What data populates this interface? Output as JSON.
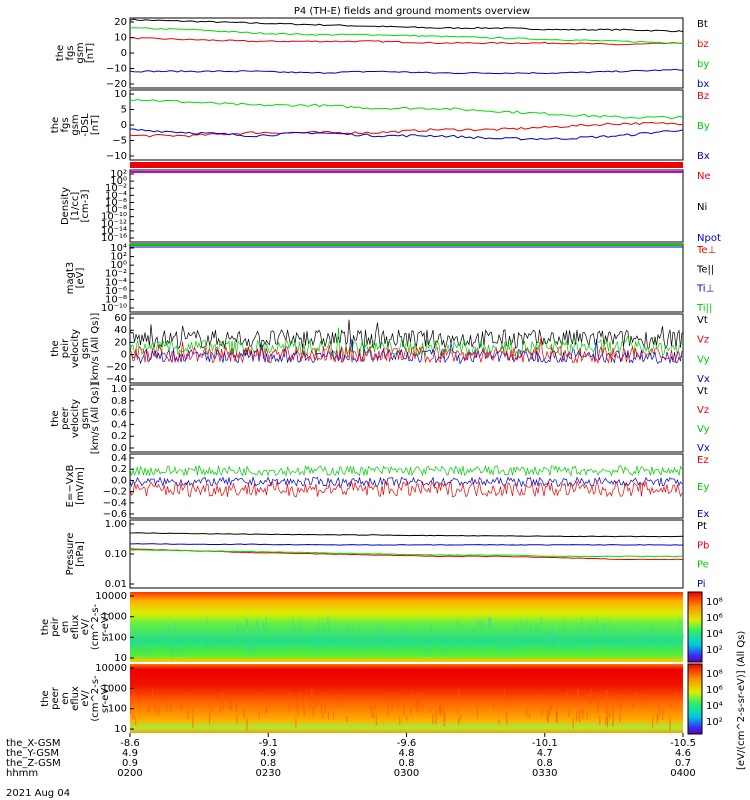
{
  "title": "P4 (TH-E) fields and ground moments overview",
  "date": "2021 Aug 04",
  "colors": {
    "black": "#000000",
    "red": "#ee0000",
    "green": "#00dd00",
    "blue": "#0000cc"
  },
  "chart_data": [
    {
      "type": "line",
      "id": "fgs_gsm",
      "ylabel": [
        "the",
        "fgs",
        "gsm",
        "[nT]"
      ],
      "yticks": [
        "20",
        "10",
        "0",
        "−10",
        "−20"
      ],
      "ylim": [
        -20,
        22
      ],
      "legend": [
        "Bt",
        "bz",
        "by",
        "bx"
      ],
      "series": [
        {
          "name": "Bt",
          "color": "#000000",
          "values": [
            21,
            20,
            19,
            18,
            17,
            16,
            16,
            15,
            15,
            14
          ]
        },
        {
          "name": "bz",
          "color": "#ee0000",
          "values": [
            10,
            9,
            8,
            8,
            8,
            7,
            7,
            7,
            6,
            7
          ]
        },
        {
          "name": "by",
          "color": "#00dd00",
          "values": [
            16,
            15,
            13,
            12,
            12,
            11,
            10,
            9,
            8,
            7
          ]
        },
        {
          "name": "bx",
          "color": "#0000cc",
          "values": [
            -10,
            -10,
            -10,
            -11,
            -10,
            -11,
            -11,
            -11,
            -10,
            -9
          ]
        }
      ]
    },
    {
      "type": "line",
      "id": "fgs_dsl",
      "ylabel": [
        "the",
        "fgs",
        "gsm",
        "-DSL",
        "[nT]"
      ],
      "yticks": [
        "10",
        "5",
        "0",
        "−5",
        "−10"
      ],
      "ylim": [
        -12,
        11
      ],
      "legend": [
        "Bz",
        "By",
        "Bx"
      ],
      "series": [
        {
          "name": "Bz",
          "color": "#ee0000",
          "values": [
            -4,
            -4,
            -3,
            -3,
            -3,
            -2,
            -2,
            -1,
            0,
            0
          ]
        },
        {
          "name": "By",
          "color": "#00dd00",
          "values": [
            8,
            7,
            6,
            6,
            5,
            5,
            4,
            3,
            2,
            2
          ]
        },
        {
          "name": "Bx",
          "color": "#0000cc",
          "values": [
            -2,
            -3,
            -4,
            -3,
            -4,
            -4,
            -5,
            -5,
            -4,
            -2
          ]
        }
      ]
    },
    {
      "type": "line",
      "id": "density",
      "ylabel": [
        "Density",
        "[1/cc]",
        "[cm-3]"
      ],
      "yticks": [
        "10²",
        "10⁰",
        "10⁻²",
        "10⁻⁴",
        "10⁻⁶",
        "10⁻⁸",
        "10⁻¹⁰",
        "10⁻¹²",
        "10⁻¹⁴",
        "10⁻¹⁶"
      ],
      "legend": [
        "Ne",
        "Ni",
        "Npot"
      ]
    },
    {
      "type": "line",
      "id": "temperature",
      "ylabel": [
        "magt3",
        "[eV]"
      ],
      "yticks": [
        "10⁴",
        "10²",
        "10⁰",
        "10⁻²",
        "10⁻⁴",
        "10⁻⁶",
        "10⁻⁸",
        "10⁻¹⁰"
      ],
      "legend": [
        "Te⊥",
        "Te||",
        "Ti⊥",
        "Ti||"
      ]
    },
    {
      "type": "line",
      "id": "peir_velocity",
      "ylabel": [
        "the",
        "peir",
        "velocity",
        "gsm",
        "[km/s (All Qs)]"
      ],
      "yticks": [
        "60",
        "40",
        "20",
        "0",
        "−20",
        "−40"
      ],
      "ylim": [
        -40,
        62
      ],
      "legend": [
        "Vt",
        "Vz",
        "Vy",
        "Vx"
      ]
    },
    {
      "type": "line",
      "id": "peer_velocity",
      "ylabel": [
        "the",
        "peer",
        "velocity",
        "gsm",
        "[km/s (All Qs)]"
      ],
      "yticks": [
        "1.0",
        "0.8",
        "0.6",
        "0.4",
        "0.2",
        "0.0"
      ],
      "ylim": [
        0,
        1
      ],
      "legend": [
        "Vt",
        "Vz",
        "Vy",
        "Vx"
      ]
    },
    {
      "type": "line",
      "id": "efield",
      "ylabel": [
        "E=−VxB",
        "[mV/m]"
      ],
      "yticks": [
        "0.4",
        "0.2",
        "0.0",
        "−0.2",
        "−0.4",
        "−0.6"
      ],
      "ylim": [
        -0.7,
        0.45
      ],
      "legend": [
        "Ez",
        "Ey",
        "Ex"
      ]
    },
    {
      "type": "line",
      "id": "pressure",
      "ylabel": [
        "Pressure",
        "[nPa]"
      ],
      "yticks": [
        "1.00",
        "0.10",
        "0.01"
      ],
      "log": true,
      "legend": [
        "Pt",
        "Pb",
        "Pe",
        "Pi"
      ],
      "series": [
        {
          "name": "Pt",
          "color": "#000000",
          "values": [
            0.55,
            0.52,
            0.5,
            0.48,
            0.47,
            0.45,
            0.44,
            0.43,
            0.42,
            0.42
          ]
        },
        {
          "name": "Pb",
          "color": "#ee0000",
          "values": [
            0.17,
            0.15,
            0.13,
            0.12,
            0.11,
            0.1,
            0.1,
            0.09,
            0.08,
            0.08
          ]
        },
        {
          "name": "Pe",
          "color": "#00dd00",
          "values": [
            0.16,
            0.15,
            0.14,
            0.13,
            0.12,
            0.11,
            0.11,
            0.1,
            0.1,
            0.1
          ]
        },
        {
          "name": "Pi",
          "color": "#0000cc",
          "values": [
            0.25,
            0.24,
            0.24,
            0.23,
            0.23,
            0.23,
            0.23,
            0.23,
            0.23,
            0.23
          ]
        }
      ]
    },
    {
      "type": "heatmap",
      "id": "peir_eflux",
      "ylabel": [
        "the",
        "peir",
        "en",
        "eflux",
        "eV/",
        "(cm^2-s-",
        "sr-eV)"
      ],
      "yticks": [
        "10000",
        "1000",
        "100",
        "10"
      ]
    },
    {
      "type": "heatmap",
      "id": "peer_eflux",
      "ylabel": [
        "the",
        "peer",
        "en",
        "eflux",
        "eV/",
        "(cm^2-s-",
        "sr-eV)"
      ],
      "yticks": [
        "10000",
        "1000",
        "100",
        "10"
      ]
    }
  ],
  "colorbar": {
    "ticks": [
      "10⁸",
      "10⁶",
      "10⁴",
      "10²",
      "10⁸",
      "10⁶",
      "10⁴",
      "10²"
    ],
    "label": "[eV/(cm^2-s-sr-eV)] (All Qs)"
  },
  "xaxis": {
    "ticks": [
      "0200",
      "0230",
      "0300",
      "0330",
      "0400"
    ],
    "rows": [
      {
        "label": "the_X-GSM",
        "values": [
          "-8.6",
          "-9.1",
          "-9.6",
          "-10.1",
          "-10.5"
        ]
      },
      {
        "label": "the_Y-GSM",
        "values": [
          "4.9",
          "4.9",
          "4.8",
          "4.7",
          "4.6"
        ]
      },
      {
        "label": "the_Z-GSM",
        "values": [
          "0.9",
          "0.8",
          "0.8",
          "0.8",
          "0.7"
        ]
      },
      {
        "label": "hhmm",
        "values": [
          "0200",
          "0230",
          "0300",
          "0330",
          "0400"
        ]
      }
    ]
  }
}
